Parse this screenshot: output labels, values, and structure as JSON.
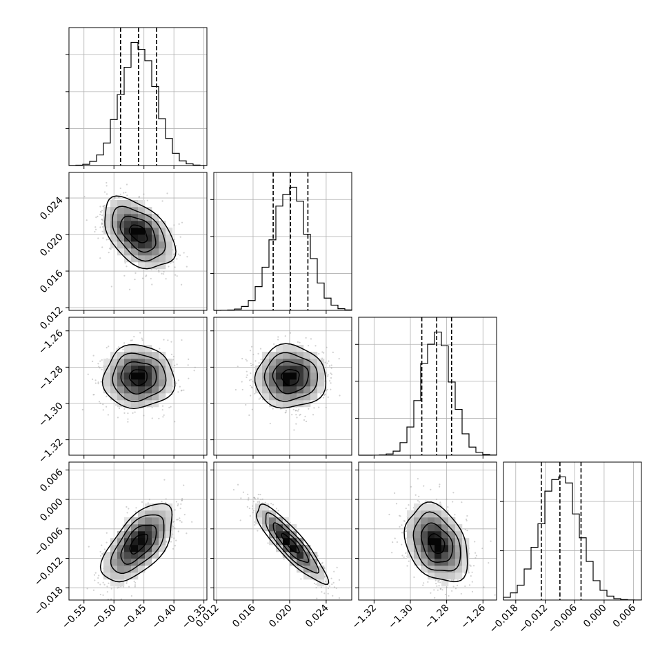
{
  "figure": {
    "background": "#ffffff",
    "ink": "#000000",
    "grid_color": "#b0b0b0"
  },
  "chart_data": {
    "type": "corner",
    "n_params": 4,
    "params": [
      {
        "range": [
          -0.575,
          -0.345
        ],
        "mean": -0.459,
        "sigma": 0.029,
        "quantiles": [
          -0.489,
          -0.459,
          -0.429
        ],
        "ticks": [
          {
            "v": -0.55,
            "label": "−0.55"
          },
          {
            "v": -0.5,
            "label": "−0.50"
          },
          {
            "v": -0.45,
            "label": "−0.45"
          },
          {
            "v": -0.4,
            "label": "−0.40"
          },
          {
            "v": -0.35,
            "label": "−0.35"
          }
        ]
      },
      {
        "range": [
          0.0117,
          0.0268
        ],
        "mean": 0.0201,
        "sigma": 0.0019,
        "quantiles": [
          0.0182,
          0.0201,
          0.022
        ],
        "ticks": [
          {
            "v": 0.012,
            "label": "0.012"
          },
          {
            "v": 0.016,
            "label": "0.016"
          },
          {
            "v": 0.02,
            "label": "0.020"
          },
          {
            "v": 0.024,
            "label": "0.024"
          }
        ]
      },
      {
        "range": [
          -1.3285,
          -1.2525
        ],
        "mean": -1.2855,
        "sigma": 0.0085,
        "quantiles": [
          -1.2937,
          -1.2855,
          -1.2773
        ],
        "ticks": [
          {
            "v": -1.32,
            "label": "−1.32"
          },
          {
            "v": -1.3,
            "label": "−1.30"
          },
          {
            "v": -1.28,
            "label": "−1.28"
          },
          {
            "v": -1.26,
            "label": "−1.26"
          }
        ]
      },
      {
        "range": [
          -0.0205,
          0.0076
        ],
        "mean": -0.009,
        "sigma": 0.0039,
        "quantiles": [
          -0.0128,
          -0.009,
          -0.0047
        ],
        "ticks": [
          {
            "v": -0.018,
            "label": "−0.018"
          },
          {
            "v": -0.012,
            "label": "−0.012"
          },
          {
            "v": -0.006,
            "label": "−0.006"
          },
          {
            "v": 0.0,
            "label": "0.000"
          },
          {
            "v": 0.006,
            "label": "0.006"
          }
        ]
      }
    ],
    "correlations": [
      {
        "pair": [
          1,
          0
        ],
        "rho": -0.45
      },
      {
        "pair": [
          2,
          0
        ],
        "rho": 0.0
      },
      {
        "pair": [
          2,
          1
        ],
        "rho": 0.0
      },
      {
        "pair": [
          3,
          0
        ],
        "rho": 0.6
      },
      {
        "pair": [
          3,
          1
        ],
        "rho": -0.88
      },
      {
        "pair": [
          3,
          2
        ],
        "rho": -0.3
      }
    ],
    "histograms": {
      "bins": 20,
      "diag_ticks": [
        [
          300,
          600,
          900
        ],
        [
          300,
          600,
          900
        ],
        [
          300,
          600,
          900
        ],
        [
          400,
          800
        ]
      ]
    },
    "contour_levels_sigma": [
      0.5,
      1.0,
      1.5,
      2.0
    ],
    "grid": true,
    "xlabels": [
      "",
      "",
      "",
      ""
    ],
    "ylabels": [
      "",
      "",
      "",
      ""
    ]
  }
}
